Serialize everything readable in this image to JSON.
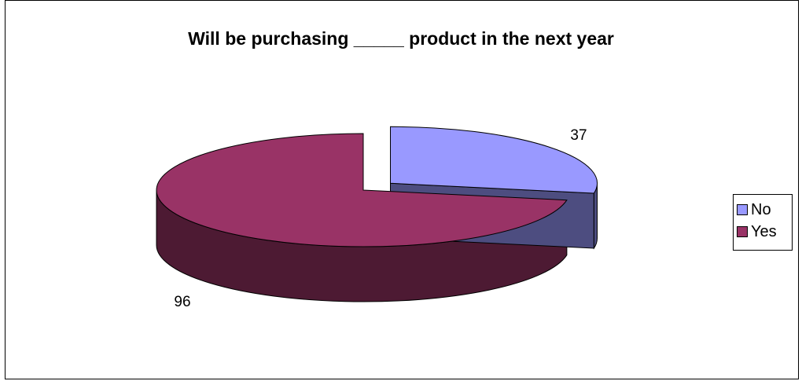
{
  "chart_data": {
    "type": "pie",
    "title": "Will be purchasing _____ product in the next year",
    "series": [
      {
        "name": "No",
        "value": 37,
        "color": "#9999FF",
        "side_color": "#4D4D80"
      },
      {
        "name": "Yes",
        "value": 96,
        "color": "#993366",
        "side_color": "#4D1A33"
      }
    ],
    "data_labels": [
      "37",
      "96"
    ],
    "legend": {
      "position": "right",
      "entries": [
        "No",
        "Yes"
      ]
    },
    "style": "3d-exploded"
  }
}
